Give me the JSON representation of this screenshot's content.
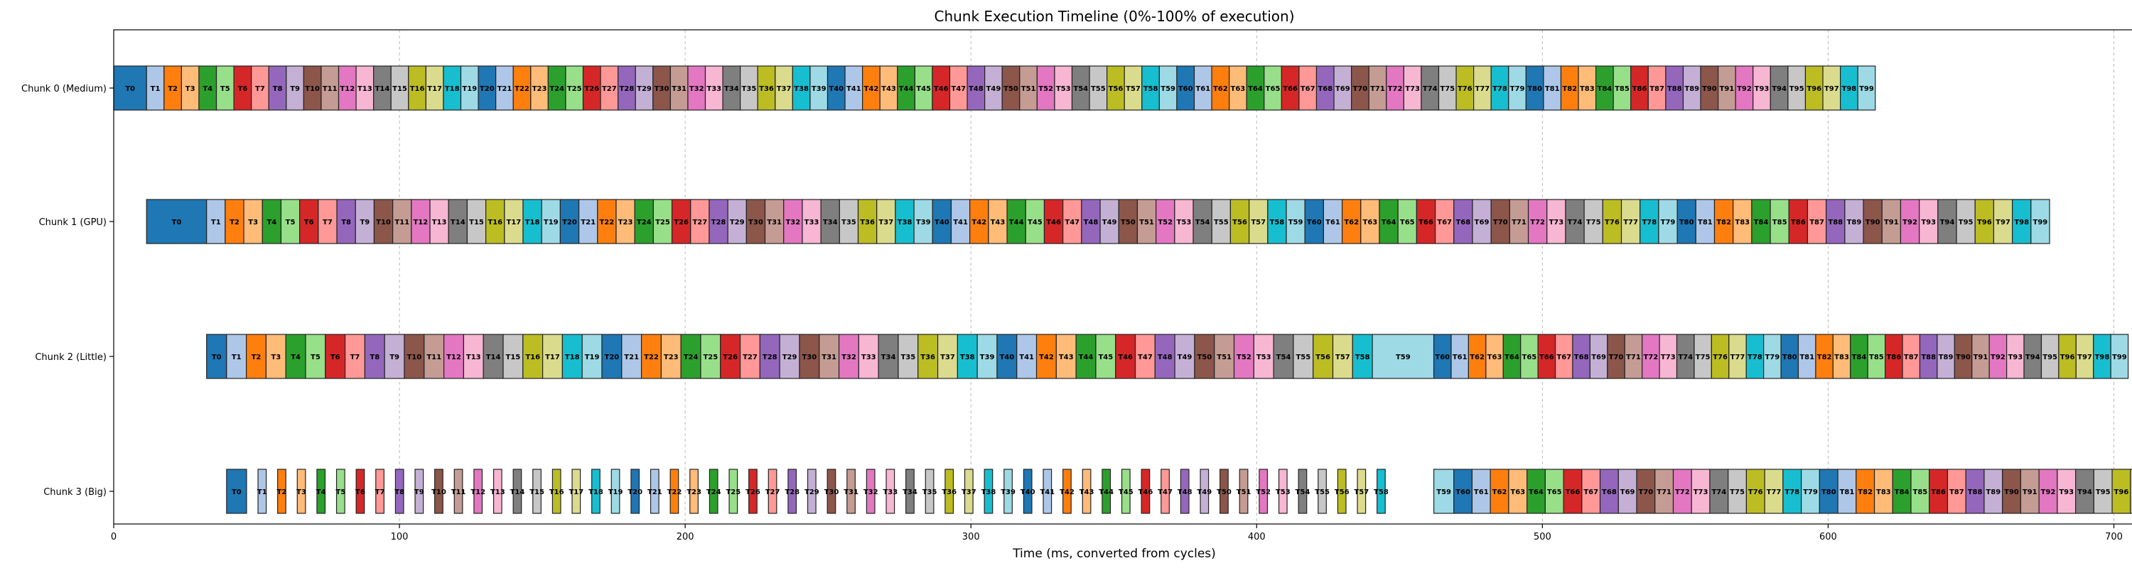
{
  "chart_data": {
    "type": "gantt",
    "title": "Chunk Execution Timeline (0%-100% of execution)",
    "xlabel": "Time (ms, converted from cycles)",
    "ylabel": "",
    "xlim": [
      0,
      725
    ],
    "xticks": [
      0,
      100,
      200,
      300,
      400,
      500,
      600,
      700
    ],
    "grid": "x-dashed",
    "task_colors": [
      "#1f77b4",
      "#aec7e8",
      "#ff7f0e",
      "#ffbb78",
      "#2ca02c",
      "#98df8a",
      "#d62728",
      "#ff9896",
      "#9467bd",
      "#c5b0d5",
      "#8c564b",
      "#c49c94",
      "#e377c2",
      "#f7b6d2",
      "#7f7f7f",
      "#c7c7c7",
      "#bcbd22",
      "#dbdb8d",
      "#17becf",
      "#9edae5"
    ],
    "series": [
      {
        "name": "Chunk 0 (Medium)",
        "runs": [
          {
            "from": 0,
            "to": 99,
            "start": 0,
            "end": 616.5,
            "first_dur": 11.5
          }
        ]
      },
      {
        "name": "Chunk 1 (GPU)",
        "runs": [
          {
            "from": 0,
            "to": 99,
            "start": 11.5,
            "end": 677.5,
            "first_dur": 21
          }
        ]
      },
      {
        "name": "Chunk 2 (Little)",
        "runs": [
          {
            "from": 0,
            "to": 58,
            "start": 32.5,
            "end": 440.5,
            "first_dur": 7
          },
          {
            "from": 59,
            "to": 99,
            "start": 440.5,
            "end": 705,
            "first_dur": 21.5
          }
        ]
      },
      {
        "name": "Chunk 3 (Big)",
        "runs": [
          {
            "from": 0,
            "to": 58,
            "start": 39.5,
            "end": 445,
            "first_dur": 7,
            "gap": 4
          },
          {
            "from": 59,
            "to": 99,
            "start": 462,
            "end": 725,
            "first_dur": 7
          }
        ]
      }
    ]
  }
}
